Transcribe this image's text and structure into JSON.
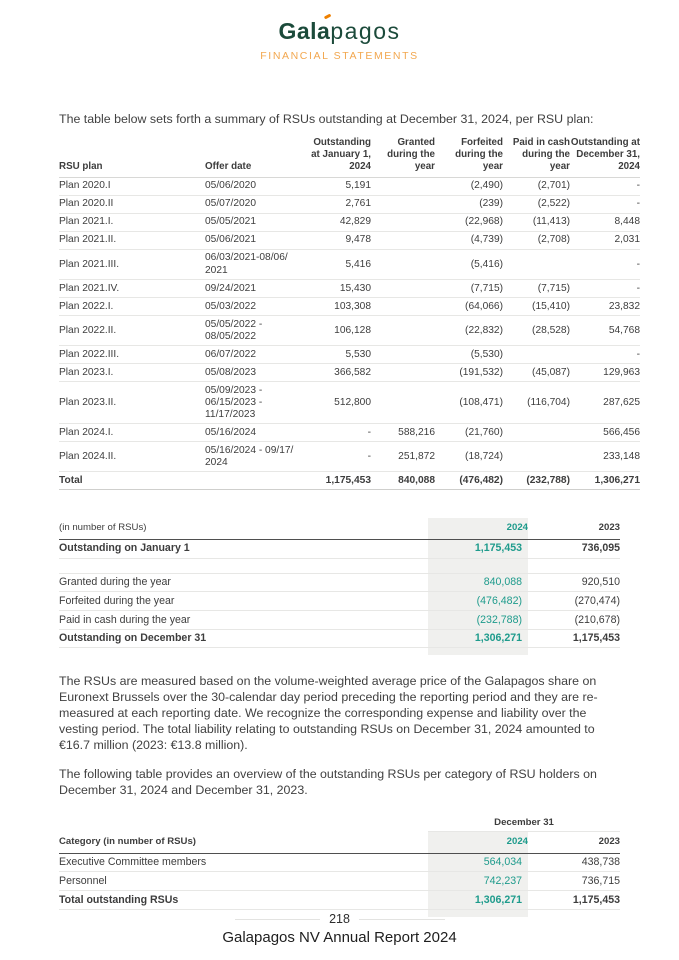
{
  "brand": {
    "logo_bold": "Gal",
    "logo_accent_letter": "a",
    "logo_rest": "pagos",
    "subtitle": "FINANCIAL STATEMENTS",
    "green": "#1b4a3a",
    "accent_orange": "#ee8000",
    "subtitle_orange": "#f2a74f",
    "teal": "#1e9b8c",
    "highlight_column_bg": "#f0f0ee"
  },
  "intro": "The table below sets forth a summary of RSUs outstanding at December 31, 2024, per RSU plan:",
  "rsu_plan_table": {
    "headers": [
      "RSU plan",
      "Offer date",
      "Outstanding at January 1, 2024",
      "Granted during the year",
      "Forfeited during the year",
      "Paid in cash during the year",
      "Outstanding at December 31, 2024"
    ],
    "rows": [
      [
        "Plan 2020.I",
        "05/06/2020",
        "5,191",
        "",
        "(2,490)",
        "(2,701)",
        "-"
      ],
      [
        "Plan 2020.II",
        "05/07/2020",
        "2,761",
        "",
        "(239)",
        "(2,522)",
        "-"
      ],
      [
        "Plan 2021.I.",
        "05/05/2021",
        "42,829",
        "",
        "(22,968)",
        "(11,413)",
        "8,448"
      ],
      [
        "Plan 2021.II.",
        "05/06/2021",
        "9,478",
        "",
        "(4,739)",
        "(2,708)",
        "2,031"
      ],
      [
        "Plan 2021.III.",
        "06/03/2021-08/06/\n2021",
        "5,416",
        "",
        "(5,416)",
        "",
        "-"
      ],
      [
        "Plan 2021.IV.",
        "09/24/2021",
        "15,430",
        "",
        "(7,715)",
        "(7,715)",
        "-"
      ],
      [
        "Plan 2022.I.",
        "05/03/2022",
        "103,308",
        "",
        "(64,066)",
        "(15,410)",
        "23,832"
      ],
      [
        "Plan 2022.II.",
        "05/05/2022 -\n08/05/2022",
        "106,128",
        "",
        "(22,832)",
        "(28,528)",
        "54,768"
      ],
      [
        "Plan 2022.III.",
        "06/07/2022",
        "5,530",
        "",
        "(5,530)",
        "",
        "-"
      ],
      [
        "Plan 2023.I.",
        "05/08/2023",
        "366,582",
        "",
        "(191,532)",
        "(45,087)",
        "129,963"
      ],
      [
        "Plan 2023.II.",
        "05/09/2023 -\n06/15/2023 -\n11/17/2023",
        "512,800",
        "",
        "(108,471)",
        "(116,704)",
        "287,625"
      ],
      [
        "Plan 2024.I.",
        "05/16/2024",
        "-",
        "588,216",
        "(21,760)",
        "",
        "566,456"
      ],
      [
        "Plan 2024.II.",
        "05/16/2024 - 09/17/\n2024",
        "-",
        "251,872",
        "(18,724)",
        "",
        "233,148"
      ]
    ],
    "total_row": [
      "Total",
      "",
      "1,175,453",
      "840,088",
      "(476,482)",
      "(232,788)",
      "1,306,271"
    ]
  },
  "rollforward_table": {
    "header": {
      "label": "(in number of RSUs)",
      "col_2024": "2024",
      "col_2023": "2023"
    },
    "rows": [
      {
        "label": "Outstanding on January 1",
        "y2024": "1,175,453",
        "y2023": "736,095",
        "emphasis": true
      },
      {
        "spacer": true
      },
      {
        "label": "Granted during the year",
        "y2024": "840,088",
        "y2023": "920,510"
      },
      {
        "label": "Forfeited during the year",
        "y2024": "(476,482)",
        "y2023": "(270,474)"
      },
      {
        "label": "Paid in cash during the year",
        "y2024": "(232,788)",
        "y2023": "(210,678)"
      },
      {
        "label": "Outstanding on December 31",
        "y2024": "1,306,271",
        "y2023": "1,175,453",
        "emphasis": true,
        "total": true
      }
    ]
  },
  "paragraphs": [
    "The RSUs are measured based on the volume-weighted average price of the Galapagos share on Euronext Brussels over the 30-calendar day period preceding the reporting period and they are re-measured at each reporting date. We recognize the corresponding expense and liability over the vesting period. The total liability relating to outstanding RSUs on December 31, 2024 amounted to €16.7 million (2023: €13.8 million).",
    "The following table provides an overview of the outstanding RSUs per category of RSU holders on December 31, 2024 and December 31, 2023."
  ],
  "category_table": {
    "group_header": "December 31",
    "header": {
      "label": "Category (in number of RSUs)",
      "col_2024": "2024",
      "col_2023": "2023"
    },
    "rows": [
      {
        "label": "Executive Committee members",
        "y2024": "564,034",
        "y2023": "438,738"
      },
      {
        "label": "Personnel",
        "y2024": "742,237",
        "y2023": "736,715"
      },
      {
        "label": "Total outstanding RSUs",
        "y2024": "1,306,271",
        "y2023": "1,175,453",
        "emphasis": true,
        "total": true
      }
    ]
  },
  "footer": {
    "page_number": "218",
    "report_title": "Galapagos NV Annual Report 2024"
  }
}
